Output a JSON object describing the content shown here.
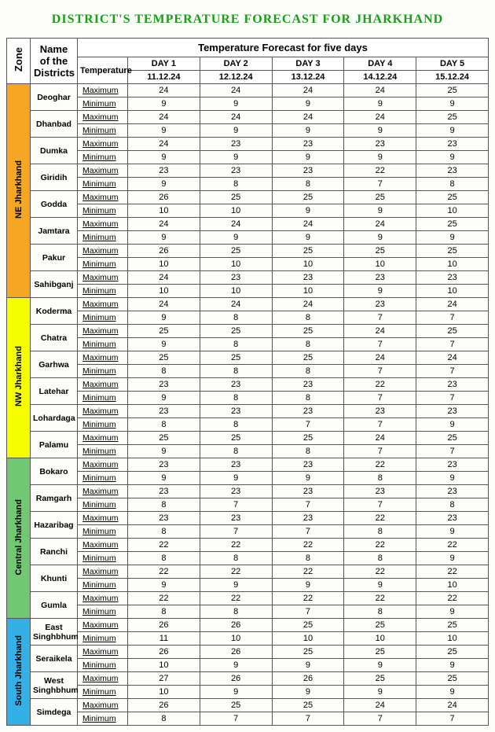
{
  "title": "DISTRICT'S TEMPERATURE FORECAST FOR JHARKHAND",
  "header": {
    "zone": "Zone",
    "district": "Name of the Districts",
    "forecast_title": "Temperature Forecast for five days",
    "temperature": "Temperature",
    "days": [
      "DAY 1",
      "DAY 2",
      "DAY 3",
      "DAY 4",
      "DAY 5"
    ],
    "dates": [
      "11.12.24",
      "12.12.24",
      "13.12.24",
      "14.12.24",
      "15.12.24"
    ]
  },
  "metrics": {
    "max": "Maximum",
    "min": "Minimum"
  },
  "zone_colors": {
    "ne": "#f5a623",
    "nw": "#f6ff00",
    "central": "#72c772",
    "south": "#34b0e6"
  },
  "zones": [
    {
      "id": "ne",
      "name": "NE Jharkhand",
      "color_key": "ne",
      "districts": [
        {
          "name": "Deoghar",
          "max": [
            24,
            24,
            24,
            24,
            25
          ],
          "min": [
            9,
            9,
            9,
            9,
            9
          ]
        },
        {
          "name": "Dhanbad",
          "max": [
            24,
            24,
            24,
            24,
            25
          ],
          "min": [
            9,
            9,
            9,
            9,
            9
          ]
        },
        {
          "name": "Dumka",
          "max": [
            24,
            23,
            23,
            23,
            23
          ],
          "min": [
            9,
            9,
            9,
            9,
            9
          ]
        },
        {
          "name": "Giridih",
          "max": [
            23,
            23,
            23,
            22,
            23
          ],
          "min": [
            9,
            8,
            8,
            7,
            8
          ]
        },
        {
          "name": "Godda",
          "max": [
            26,
            25,
            25,
            25,
            25
          ],
          "min": [
            10,
            10,
            9,
            9,
            10
          ]
        },
        {
          "name": "Jamtara",
          "max": [
            24,
            24,
            24,
            24,
            25
          ],
          "min": [
            9,
            9,
            9,
            9,
            9
          ]
        },
        {
          "name": "Pakur",
          "max": [
            26,
            25,
            25,
            25,
            25
          ],
          "min": [
            10,
            10,
            10,
            10,
            10
          ]
        },
        {
          "name": "Sahibganj",
          "max": [
            24,
            23,
            23,
            23,
            23
          ],
          "min": [
            10,
            10,
            10,
            9,
            10
          ]
        }
      ]
    },
    {
      "id": "nw",
      "name": "NW Jharkhand",
      "color_key": "nw",
      "districts": [
        {
          "name": "Koderma",
          "max": [
            24,
            24,
            24,
            23,
            24
          ],
          "min": [
            9,
            8,
            8,
            7,
            7
          ]
        },
        {
          "name": "Chatra",
          "max": [
            25,
            25,
            25,
            24,
            25
          ],
          "min": [
            9,
            8,
            8,
            7,
            7
          ]
        },
        {
          "name": "Garhwa",
          "max": [
            25,
            25,
            25,
            24,
            24
          ],
          "min": [
            8,
            8,
            8,
            7,
            7
          ]
        },
        {
          "name": "Latehar",
          "max": [
            23,
            23,
            23,
            22,
            23
          ],
          "min": [
            9,
            8,
            8,
            7,
            7
          ]
        },
        {
          "name": "Lohardaga",
          "max": [
            23,
            23,
            23,
            23,
            23
          ],
          "min": [
            8,
            8,
            7,
            7,
            9
          ]
        },
        {
          "name": "Palamu",
          "max": [
            25,
            25,
            25,
            24,
            25
          ],
          "min": [
            9,
            8,
            8,
            7,
            7
          ]
        }
      ]
    },
    {
      "id": "central",
      "name": "Central Jharkhand",
      "color_key": "central",
      "districts": [
        {
          "name": "Bokaro",
          "max": [
            23,
            23,
            23,
            22,
            23
          ],
          "min": [
            9,
            9,
            9,
            8,
            9
          ]
        },
        {
          "name": "Ramgarh",
          "max": [
            23,
            23,
            23,
            23,
            23
          ],
          "min": [
            8,
            7,
            7,
            7,
            8
          ]
        },
        {
          "name": "Hazaribag",
          "max": [
            23,
            23,
            23,
            22,
            23
          ],
          "min": [
            8,
            7,
            7,
            8,
            9
          ]
        },
        {
          "name": "Ranchi",
          "max": [
            22,
            22,
            22,
            22,
            22
          ],
          "min": [
            8,
            8,
            8,
            8,
            9
          ]
        },
        {
          "name": "Khunti",
          "max": [
            22,
            22,
            22,
            22,
            22
          ],
          "min": [
            9,
            9,
            9,
            9,
            10
          ]
        },
        {
          "name": "Gumla",
          "max": [
            22,
            22,
            22,
            22,
            22
          ],
          "min": [
            8,
            8,
            7,
            8,
            9
          ]
        }
      ]
    },
    {
      "id": "south",
      "name": "South Jharkhand",
      "color_key": "south",
      "districts": [
        {
          "name": "East Singhbhum",
          "max": [
            26,
            26,
            25,
            25,
            25
          ],
          "min": [
            11,
            10,
            10,
            10,
            10
          ]
        },
        {
          "name": "Seraikela",
          "max": [
            26,
            26,
            25,
            25,
            25
          ],
          "min": [
            10,
            9,
            9,
            9,
            9
          ]
        },
        {
          "name": "West Singhbhum",
          "max": [
            27,
            26,
            26,
            25,
            25
          ],
          "min": [
            10,
            9,
            9,
            9,
            9
          ]
        },
        {
          "name": "Simdega",
          "max": [
            26,
            25,
            25,
            24,
            24
          ],
          "min": [
            8,
            7,
            7,
            7,
            7
          ]
        }
      ]
    }
  ]
}
